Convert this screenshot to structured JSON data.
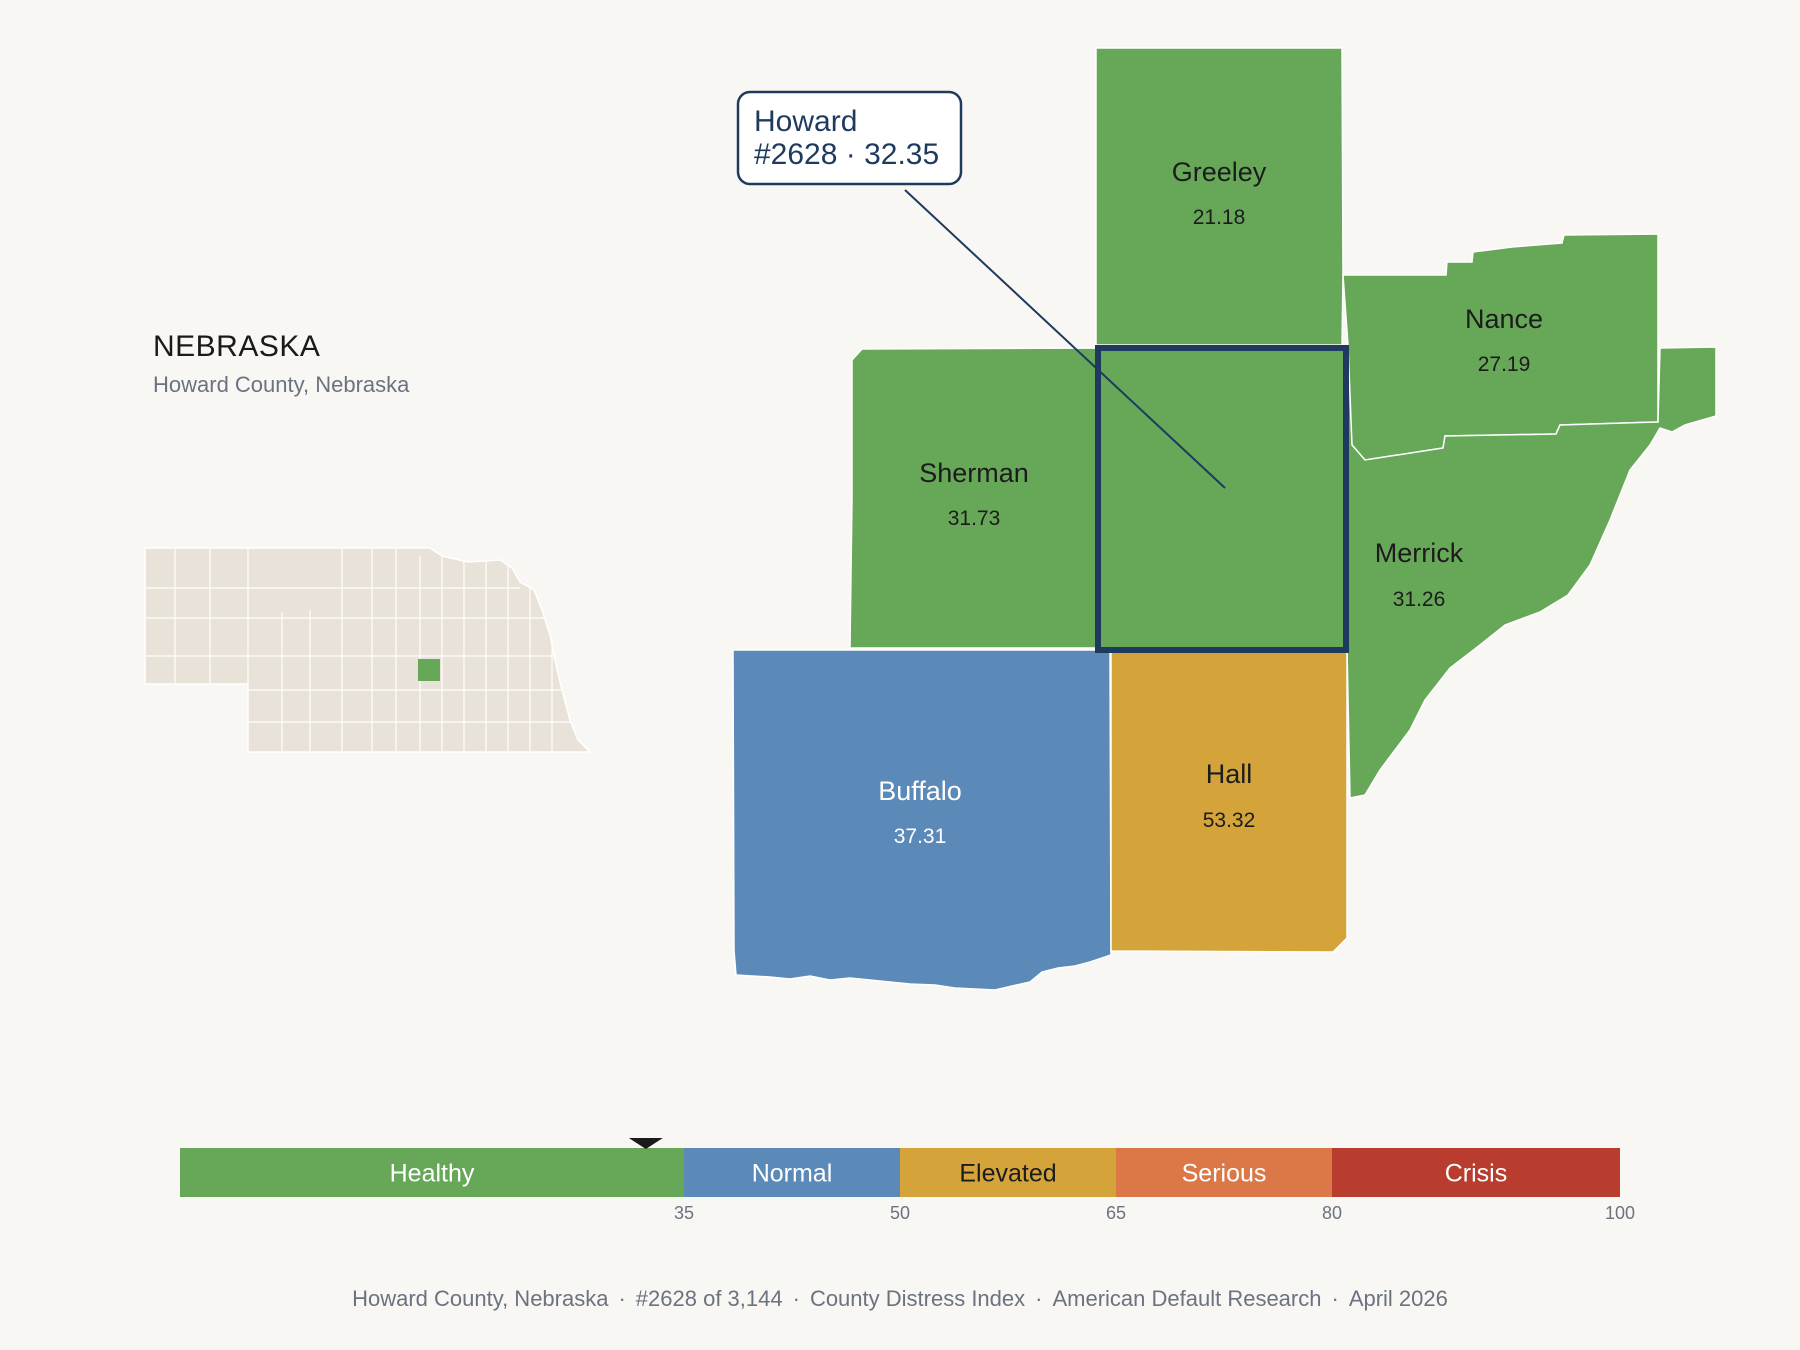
{
  "header": {
    "state_title": "NEBRASKA",
    "subtitle": "Howard County, Nebraska"
  },
  "map": {
    "counties": [
      {
        "name": "Greeley",
        "score": "21.18",
        "category": "Healthy"
      },
      {
        "name": "Nance",
        "score": "27.19",
        "category": "Healthy"
      },
      {
        "name": "Sherman",
        "score": "31.73",
        "category": "Healthy"
      },
      {
        "name": "Howard",
        "score": "32.35",
        "category": "Healthy",
        "highlighted": true
      },
      {
        "name": "Merrick",
        "score": "31.26",
        "category": "Healthy"
      },
      {
        "name": "Buffalo",
        "score": "37.31",
        "category": "Normal"
      },
      {
        "name": "Hall",
        "score": "53.32",
        "category": "Elevated"
      }
    ],
    "callout": {
      "line1": "Howard",
      "line2": "#2628 · 32.35"
    }
  },
  "scale": {
    "min": 0,
    "max": 100,
    "marker_value": 32.35,
    "categories": [
      {
        "label": "Healthy",
        "from": 0,
        "to": 35,
        "color": "#66a758",
        "text_color": "#ffffff"
      },
      {
        "label": "Normal",
        "from": 35,
        "to": 50,
        "color": "#5b8ab9",
        "text_color": "#ffffff"
      },
      {
        "label": "Elevated",
        "from": 50,
        "to": 65,
        "color": "#d4a43b",
        "text_color": "#1c1c1c"
      },
      {
        "label": "Serious",
        "from": 65,
        "to": 80,
        "color": "#dc7848",
        "text_color": "#ffffff"
      },
      {
        "label": "Crisis",
        "from": 80,
        "to": 100,
        "color": "#b83d2e",
        "text_color": "#ffffff"
      }
    ],
    "ticks": [
      "35",
      "50",
      "65",
      "80",
      "100"
    ]
  },
  "colors": {
    "healthy": "#66a758",
    "normal": "#5b8ab9",
    "elevated": "#d4a43b",
    "highlight_border": "#1e3a5f",
    "inset_land": "#e8e2d8",
    "background": "#f9f7f3"
  },
  "footer": {
    "location": "Howard County, Nebraska",
    "rank": "#2628 of 3,144",
    "index": "County Distress Index",
    "source": "American Default Research",
    "date": "April 2026"
  }
}
